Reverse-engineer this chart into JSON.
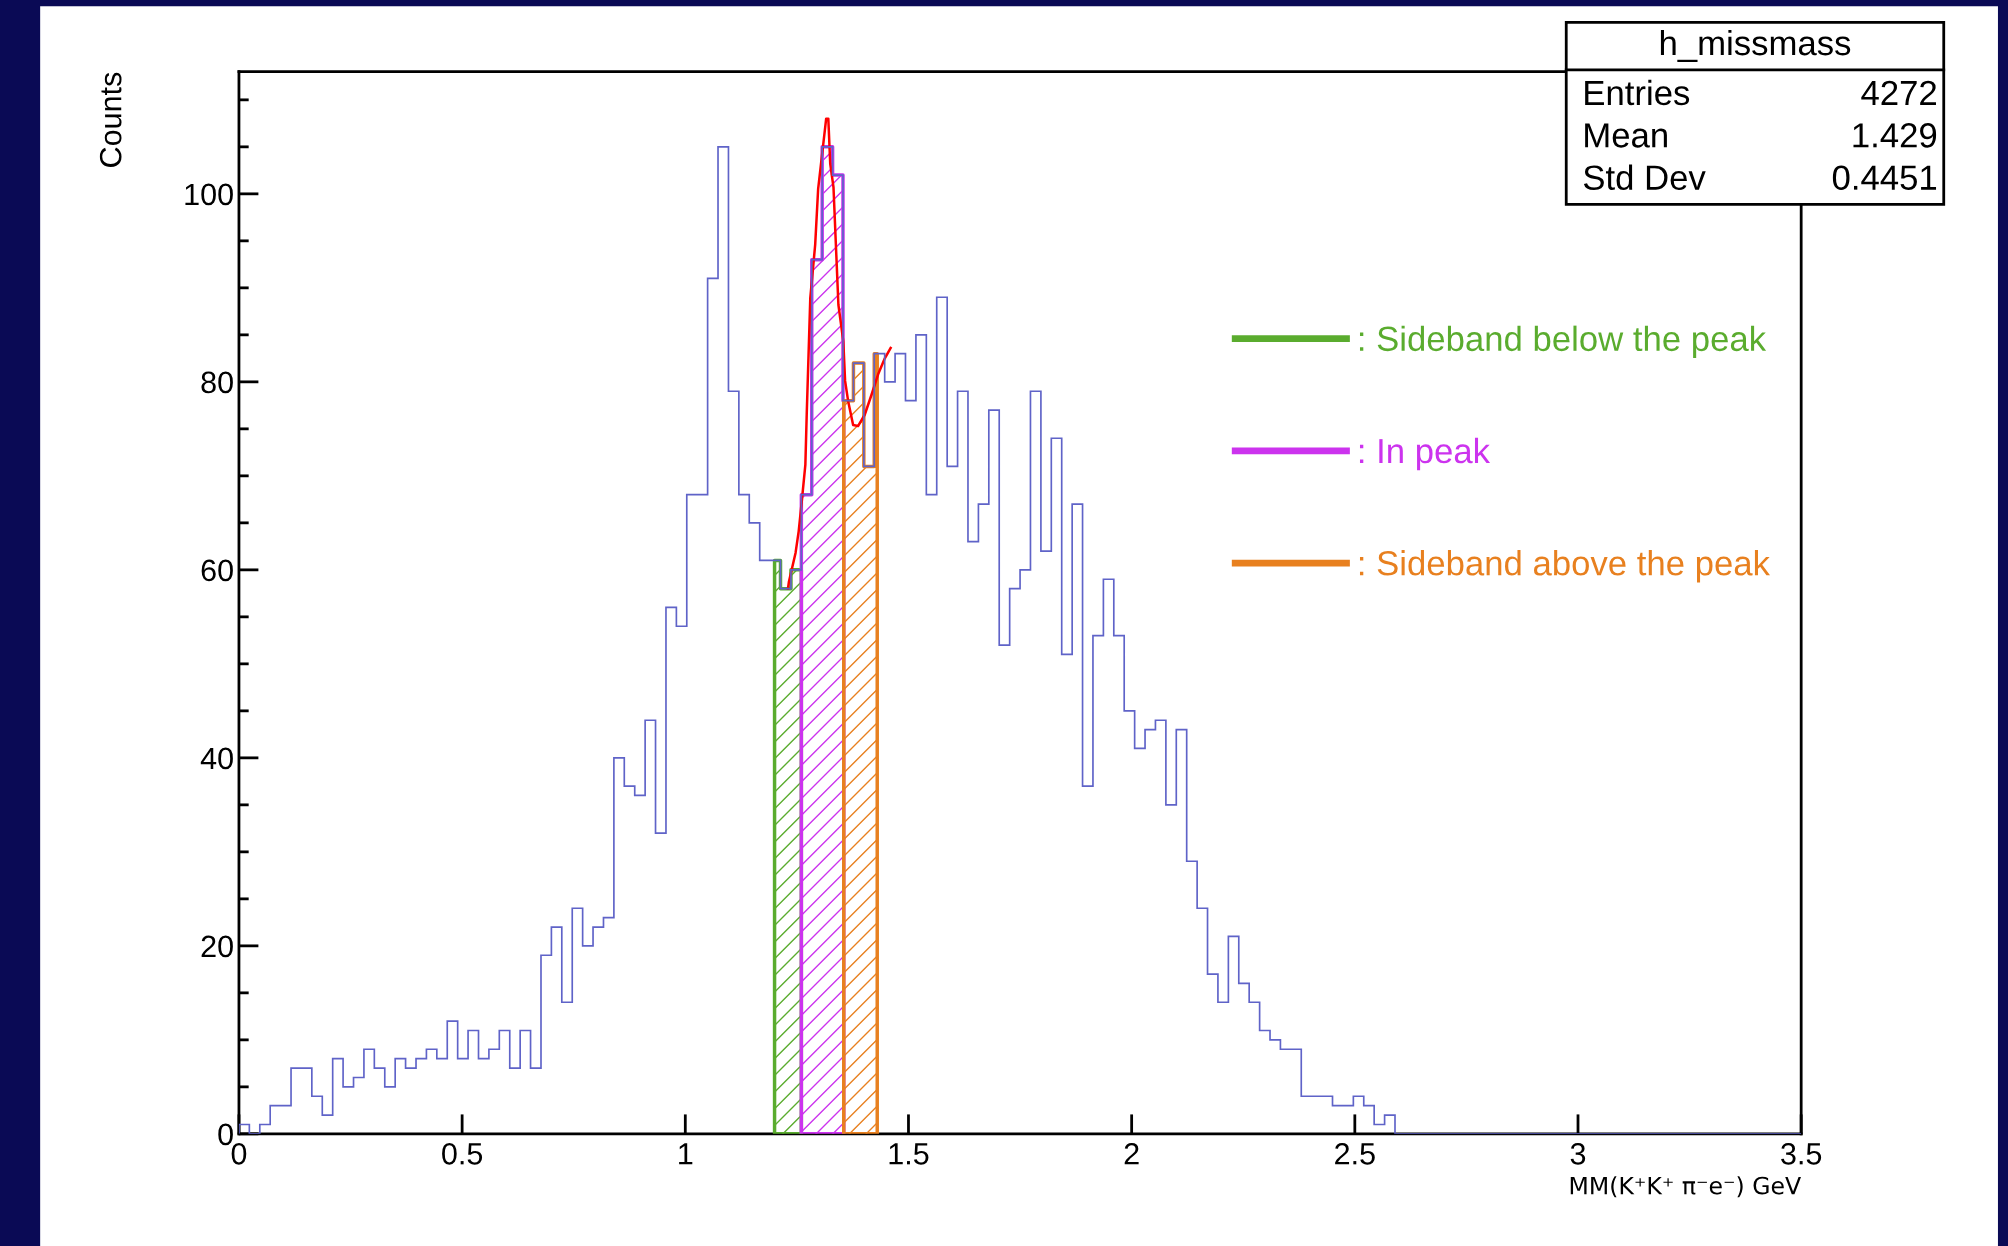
{
  "chart_data": {
    "type": "histogram",
    "xlabel": "MM(K⁺K⁺ π⁻e⁻) GeV",
    "ylabel": "Counts",
    "bins": [
      0,
      0.0233,
      0.0467,
      0.07,
      0.0933,
      0.1167,
      0.14,
      0.1633,
      0.1867,
      0.21,
      0.2333,
      0.2567,
      0.28,
      0.3033,
      0.3267,
      0.35,
      0.3733,
      0.3967,
      0.42,
      0.4433,
      0.4667,
      0.49,
      0.5133,
      0.5367,
      0.56,
      0.5833,
      0.6067,
      0.63,
      0.6533,
      0.6767,
      0.7,
      0.7233,
      0.7467,
      0.77,
      0.7933,
      0.8167,
      0.84,
      0.8633,
      0.8867,
      0.91,
      0.9333,
      0.9567,
      0.98,
      1.0033,
      1.0267,
      1.05,
      1.0733,
      1.0967,
      1.12,
      1.1433,
      1.1667,
      1.19,
      1.2133,
      1.2367,
      1.26,
      1.2833,
      1.3067,
      1.33,
      1.3533,
      1.3767,
      1.4,
      1.4233,
      1.4467,
      1.47,
      1.4933,
      1.5167,
      1.54,
      1.5633,
      1.5867,
      1.61,
      1.6333,
      1.6567,
      1.68,
      1.7033,
      1.7267,
      1.75,
      1.7733,
      1.7967,
      1.82,
      1.8433,
      1.8667,
      1.89,
      1.9133,
      1.9367,
      1.96,
      1.9833,
      2.0067,
      2.03,
      2.0533,
      2.0767,
      2.1,
      2.1233,
      2.1467,
      2.17,
      2.1933,
      2.2167,
      2.24,
      2.2633,
      2.2867,
      2.31,
      2.3333,
      2.3567,
      2.38,
      2.4033,
      2.4267,
      2.45,
      2.4733,
      2.4967,
      2.52,
      2.5433,
      2.5667,
      2.59,
      2.6133,
      2.6367,
      2.66,
      2.6833,
      2.7067,
      2.73,
      2.7533,
      2.7767,
      2.8,
      2.8233,
      2.8467,
      2.87,
      2.8933,
      2.9167,
      2.94,
      2.9633,
      2.9867,
      3.01,
      3.0333,
      3.0567,
      3.08,
      3.1033,
      3.1267,
      3.15,
      3.1733,
      3.1967,
      3.22,
      3.2433,
      3.2667,
      3.29,
      3.3133,
      3.3367,
      3.36,
      3.3833,
      3.4067,
      3.43,
      3.4533,
      3.4767,
      3.5
    ],
    "series": [
      {
        "type": "histogram",
        "color": "#5f63c8",
        "values": [
          1,
          0,
          1,
          3,
          3,
          7,
          7,
          4,
          2,
          8,
          5,
          6,
          9,
          7,
          5,
          8,
          7,
          8,
          9,
          8,
          12,
          8,
          11,
          8,
          9,
          11,
          7,
          11,
          7,
          19,
          22,
          14,
          24,
          20,
          22,
          23,
          40,
          37,
          36,
          44,
          32,
          56,
          54,
          68,
          68,
          91,
          105,
          79,
          68,
          65,
          61,
          61,
          58,
          60,
          68,
          93,
          105,
          102,
          78,
          82,
          71,
          83,
          80,
          83,
          78,
          85,
          68,
          89,
          71,
          79,
          63,
          67,
          77,
          52,
          58,
          60,
          79,
          62,
          74,
          51,
          67,
          37,
          53,
          59,
          53,
          45,
          41,
          43,
          44,
          35,
          43,
          29,
          24,
          17,
          14,
          21,
          16,
          14,
          11,
          10,
          9,
          9,
          4,
          4,
          4,
          3,
          3,
          4,
          3,
          1,
          2,
          0,
          0,
          0,
          0,
          0,
          0,
          0,
          0,
          0,
          0,
          0,
          0,
          0,
          0,
          0,
          0,
          0,
          0,
          0,
          0,
          0,
          0,
          0,
          0,
          0,
          0,
          0,
          0,
          0,
          0,
          0,
          0,
          0,
          0,
          0,
          0,
          0,
          0,
          0
        ]
      },
      {
        "type": "line",
        "color": "#ff0000",
        "x": [
          1.23,
          1.232,
          1.247,
          1.254,
          1.261,
          1.269,
          1.272,
          1.28,
          1.291,
          1.2976,
          1.3156,
          1.3204,
          1.3247,
          1.332,
          1.343,
          1.354,
          1.358,
          1.365,
          1.376,
          1.387,
          1.402,
          1.417,
          1.432,
          1.447,
          1.46
        ],
        "values": [
          58,
          58.7,
          61.8,
          64.1,
          67.3,
          71.2,
          76.5,
          88.9,
          94.6,
          100.5,
          108,
          108,
          103.2,
          100.7,
          88.2,
          84.3,
          80.1,
          77.9,
          75.4,
          75.3,
          76.5,
          78.6,
          80.8,
          82.5,
          83.6
        ]
      }
    ],
    "bands": [
      {
        "axis": "x",
        "from": 1.2,
        "to": 1.26,
        "label": ": Sideband below the peak",
        "color": "#5aac2e"
      },
      {
        "axis": "x",
        "from": 1.26,
        "to": 1.355,
        "label": ": In peak",
        "color": "#cc33ee"
      },
      {
        "axis": "x",
        "from": 1.355,
        "to": 1.43,
        "label": ": Sideband above the peak",
        "color": "#e8801f"
      }
    ],
    "xlim": [
      0,
      3.5
    ],
    "xticks": [
      0,
      0.5,
      1,
      1.5,
      2,
      2.5,
      3,
      3.5
    ],
    "ylim": [
      0,
      113
    ],
    "yticks": [
      0,
      {
        "value": 5,
        "label": null
      },
      {
        "value": 10,
        "label": null
      },
      {
        "value": 15,
        "label": null
      },
      20,
      {
        "value": 25,
        "label": null
      },
      {
        "value": 30,
        "label": null
      },
      {
        "value": 35,
        "label": null
      },
      40,
      {
        "value": 45,
        "label": null
      },
      {
        "value": 50,
        "label": null
      },
      {
        "value": 55,
        "label": null
      },
      60,
      {
        "value": 65,
        "label": null
      },
      {
        "value": 70,
        "label": null
      },
      {
        "value": 75,
        "label": null
      },
      80,
      {
        "value": 85,
        "label": null
      },
      {
        "value": 90,
        "label": null
      },
      {
        "value": 95,
        "label": null
      },
      100,
      {
        "value": 105,
        "label": null
      },
      {
        "value": 110,
        "label": null
      }
    ],
    "annotations": [
      "h_missmass",
      "Entries",
      "4272",
      "Mean",
      "1.429",
      "Std Dev",
      "0.4451"
    ],
    "legend": "right",
    "grid": false
  }
}
